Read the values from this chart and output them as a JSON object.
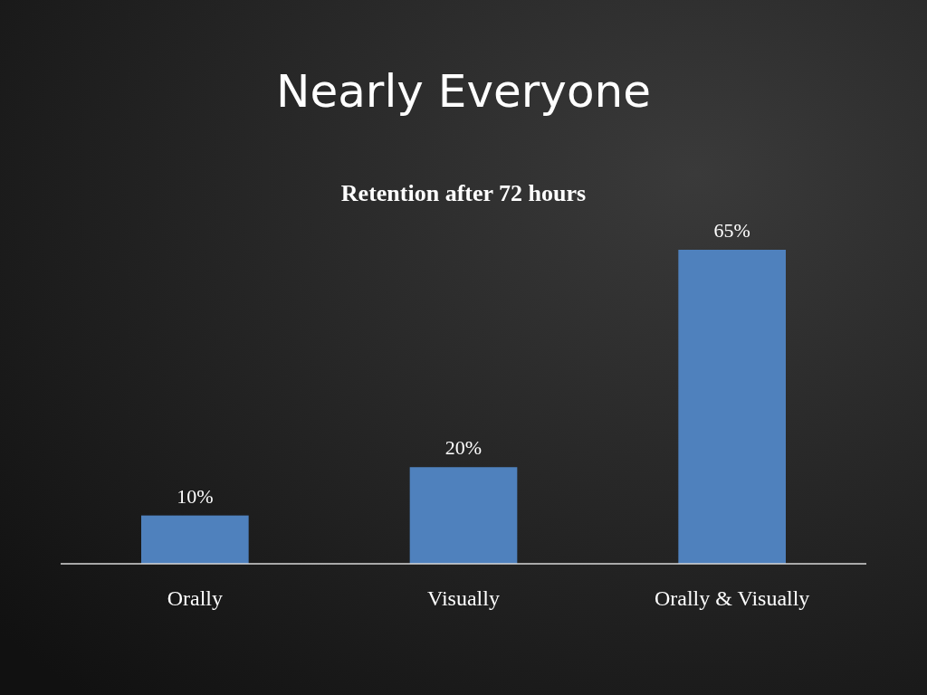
{
  "chart_data": {
    "type": "bar",
    "title": "Nearly Everyone",
    "subtitle": "Retention after 72 hours",
    "categories": [
      "Orally",
      "Visually",
      "Orally & Visually"
    ],
    "values": [
      10,
      20,
      65
    ],
    "color": "#4f81bd",
    "value_labels": [
      "10%",
      "20%",
      "65%"
    ]
  }
}
